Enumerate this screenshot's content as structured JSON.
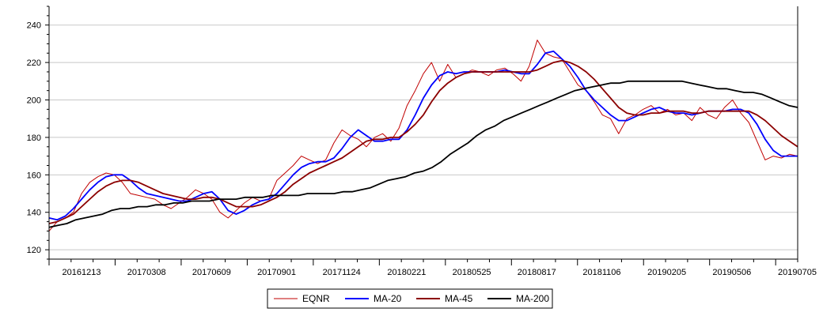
{
  "chart_data": {
    "type": "line",
    "title": "",
    "xlabel": "",
    "ylabel": "",
    "ylim": [
      115,
      250
    ],
    "y_ticks": [
      120,
      140,
      160,
      180,
      200,
      220,
      240
    ],
    "x_tick_labels": [
      "20161213",
      "20170308",
      "20170609",
      "20170901",
      "20171124",
      "20180221",
      "20180525",
      "20180817",
      "20181106",
      "20190205",
      "20190506",
      "20190705"
    ],
    "grid": true,
    "legend_position": "bottom-center",
    "series": [
      {
        "name": "EQNR",
        "color": "#c00000",
        "values": [
          130,
          135,
          137,
          140,
          150,
          156,
          159,
          161,
          160,
          156,
          150,
          149,
          148,
          147,
          144,
          142,
          145,
          148,
          152,
          150,
          147,
          140,
          137,
          141,
          145,
          148,
          146,
          147,
          157,
          161,
          165,
          170,
          168,
          166,
          168,
          177,
          184,
          181,
          179,
          175,
          180,
          182,
          178,
          185,
          197,
          205,
          214,
          220,
          210,
          219,
          212,
          214,
          216,
          215,
          213,
          216,
          217,
          214,
          210,
          218,
          232,
          225,
          223,
          222,
          215,
          208,
          205,
          199,
          192,
          190,
          182,
          190,
          192,
          195,
          197,
          193,
          195,
          192,
          193,
          189,
          196,
          192,
          190,
          196,
          200,
          193,
          188,
          178,
          168,
          170,
          169,
          171,
          170
        ]
      },
      {
        "name": "MA-20",
        "color": "#0000ff",
        "values": [
          137,
          136,
          138,
          142,
          147,
          152,
          156,
          159,
          160,
          160,
          157,
          153,
          150,
          149,
          148,
          147,
          146,
          146,
          148,
          150,
          151,
          147,
          141,
          139,
          141,
          144,
          146,
          147,
          150,
          155,
          160,
          164,
          166,
          167,
          167,
          169,
          174,
          180,
          184,
          181,
          178,
          178,
          179,
          179,
          184,
          192,
          201,
          208,
          213,
          215,
          214,
          215,
          215,
          215,
          215,
          215,
          216,
          215,
          214,
          214,
          219,
          225,
          226,
          222,
          218,
          212,
          205,
          200,
          196,
          192,
          189,
          189,
          191,
          193,
          195,
          196,
          194,
          193,
          193,
          192,
          193,
          194,
          194,
          194,
          195,
          195,
          193,
          187,
          179,
          173,
          170,
          170,
          170
        ]
      },
      {
        "name": "MA-45",
        "color": "#8b0000",
        "values": [
          134,
          135,
          137,
          139,
          143,
          147,
          151,
          154,
          156,
          157,
          157,
          156,
          154,
          152,
          150,
          149,
          148,
          147,
          147,
          148,
          148,
          147,
          145,
          143,
          143,
          143,
          144,
          146,
          148,
          151,
          155,
          158,
          161,
          163,
          165,
          167,
          169,
          172,
          175,
          178,
          179,
          179,
          180,
          180,
          183,
          187,
          192,
          199,
          205,
          209,
          212,
          214,
          215,
          215,
          215,
          215,
          215,
          215,
          215,
          215,
          216,
          218,
          220,
          221,
          220,
          218,
          215,
          211,
          206,
          201,
          196,
          193,
          192,
          192,
          193,
          193,
          194,
          194,
          194,
          193,
          193,
          194,
          194,
          194,
          194,
          194,
          194,
          192,
          189,
          185,
          181,
          178,
          175
        ]
      },
      {
        "name": "MA-200",
        "color": "#000000",
        "values": [
          132,
          133,
          134,
          136,
          137,
          138,
          139,
          141,
          142,
          142,
          143,
          143,
          144,
          144,
          145,
          145,
          146,
          146,
          146,
          147,
          147,
          147,
          148,
          148,
          148,
          149,
          149,
          149,
          149,
          150,
          150,
          150,
          150,
          151,
          151,
          152,
          153,
          155,
          157,
          158,
          159,
          161,
          162,
          164,
          167,
          171,
          174,
          177,
          181,
          184,
          186,
          189,
          191,
          193,
          195,
          197,
          199,
          201,
          203,
          205,
          206,
          207,
          208,
          209,
          209,
          210,
          210,
          210,
          210,
          210,
          210,
          210,
          209,
          208,
          207,
          206,
          206,
          205,
          204,
          204,
          203,
          201,
          199,
          197,
          196
        ]
      }
    ]
  }
}
